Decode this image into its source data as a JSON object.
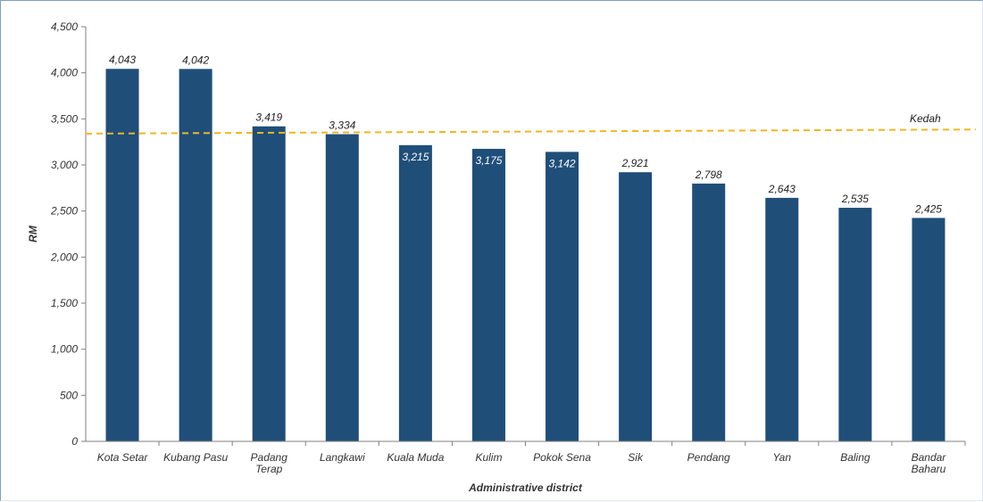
{
  "chart_data": {
    "type": "bar",
    "categories": [
      "Kota Setar",
      "Kubang Pasu",
      "Padang Terap",
      "Langkawi",
      "Kuala Muda",
      "Kulim",
      "Pokok Sena",
      "Sik",
      "Pendang",
      "Yan",
      "Baling",
      "Bandar Baharu"
    ],
    "category_lines": [
      [
        "Kota Setar"
      ],
      [
        "Kubang Pasu"
      ],
      [
        "Padang",
        "Terap"
      ],
      [
        "Langkawi"
      ],
      [
        "Kuala Muda"
      ],
      [
        "Kulim"
      ],
      [
        "Pokok Sena"
      ],
      [
        "Sik"
      ],
      [
        "Pendang"
      ],
      [
        "Yan"
      ],
      [
        "Baling"
      ],
      [
        "Bandar",
        "Baharu"
      ]
    ],
    "values": [
      4043,
      4042,
      3419,
      3334,
      3215,
      3175,
      3142,
      2921,
      2798,
      2643,
      2535,
      2425
    ],
    "value_labels": [
      "4,043",
      "4,042",
      "3,419",
      "3,334",
      "3,215",
      "3,175",
      "3,142",
      "2,921",
      "2,798",
      "2,643",
      "2,535",
      "2,425"
    ],
    "label_inside": [
      false,
      false,
      false,
      false,
      true,
      true,
      true,
      false,
      false,
      false,
      false,
      false
    ],
    "xlabel": "Administrative district",
    "ylabel": "RM",
    "ylim": [
      0,
      4500
    ],
    "yticks": [
      0,
      500,
      1000,
      1500,
      2000,
      2500,
      3000,
      3500,
      4000,
      4500
    ],
    "ytick_labels": [
      "0",
      "500",
      "1,000",
      "1,500",
      "2,000",
      "2,500",
      "3,000",
      "3,500",
      "4,000",
      "4,500"
    ],
    "reference_line": {
      "name": "Kedah",
      "y_start": 3340,
      "y_end": 3385,
      "style": "dashed"
    },
    "colors": {
      "bar": "#1f4e79",
      "reference": "#f2b620",
      "axis": "#808080"
    },
    "grid": false
  }
}
